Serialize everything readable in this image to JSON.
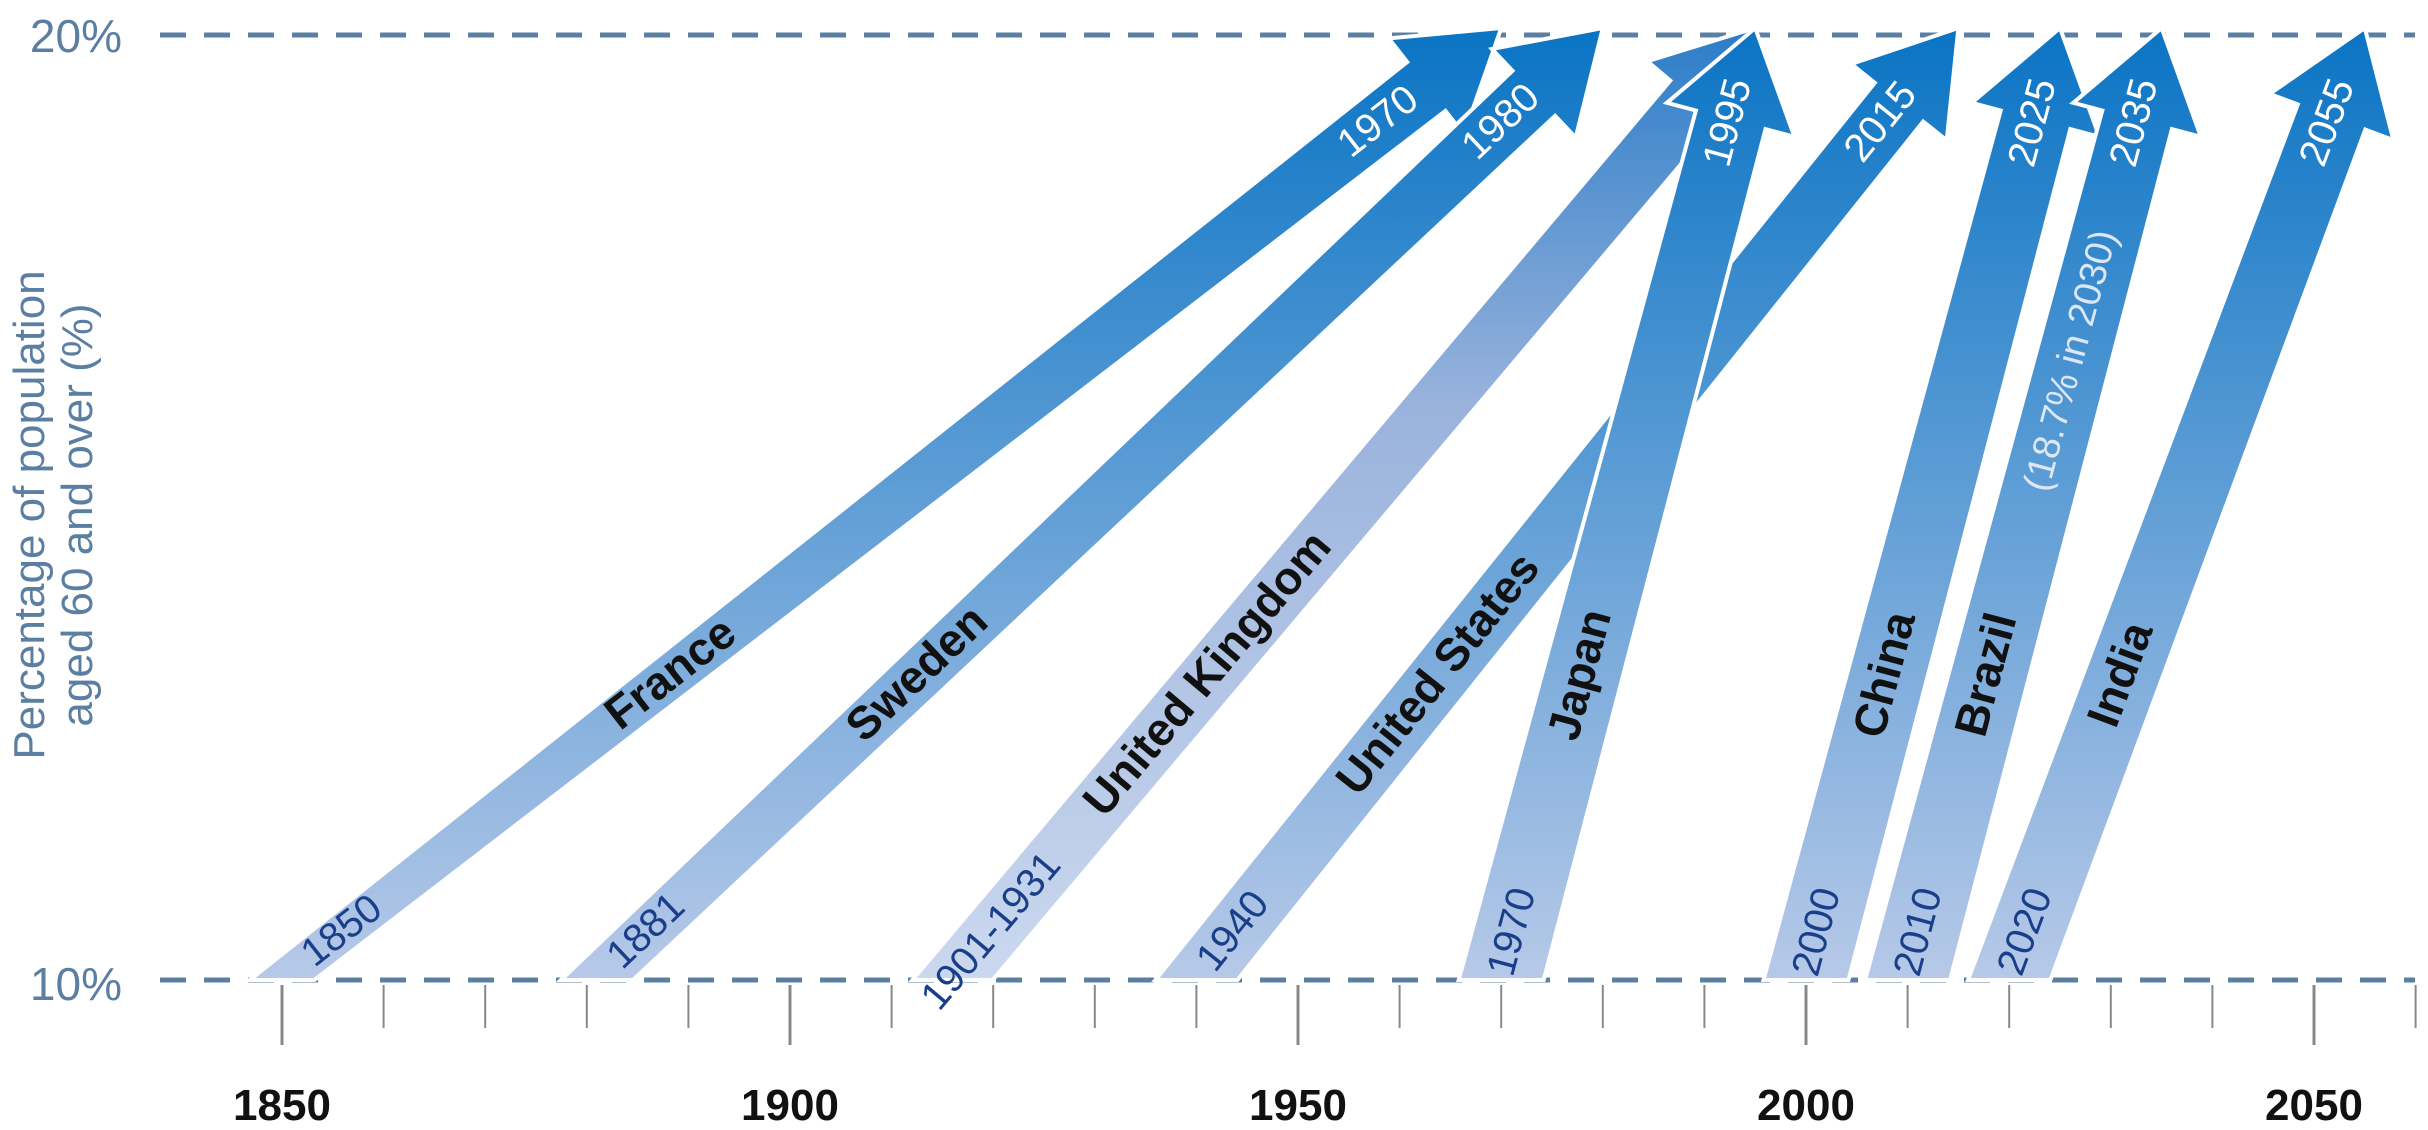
{
  "chart_data": {
    "type": "arrow-timeline",
    "ylabel_line1": "Percentage of population",
    "ylabel_line2": "aged 60 and over (%)",
    "y_ticks": [
      "10%",
      "20%"
    ],
    "ylim": [
      10,
      20
    ],
    "xlim": [
      1840,
      2060
    ],
    "x_ticks": [
      1850,
      1900,
      1950,
      2000,
      2050
    ],
    "x_tick_labels": [
      "1850",
      "1900",
      "1950",
      "2000",
      "2050"
    ],
    "grid": "dashed lines at 10% and 20%",
    "series": [
      {
        "name": "France",
        "start": 1850,
        "end": 1970,
        "start_label": "1850",
        "end_label": "1970"
      },
      {
        "name": "Sweden",
        "start": 1881,
        "end": 1980,
        "start_label": "1881",
        "end_label": "1980"
      },
      {
        "name": "United Kingdom",
        "start": 1916,
        "end": 1995,
        "start_label": "1901-1931",
        "end_label": ""
      },
      {
        "name": "United States",
        "start": 1940,
        "end": 2015,
        "start_label": "1940",
        "end_label": "2015"
      },
      {
        "name": "Japan",
        "start": 1970,
        "end": 1995,
        "start_label": "1970",
        "end_label": "1995"
      },
      {
        "name": "China",
        "start": 2000,
        "end": 2025,
        "start_label": "2000",
        "end_label": "2025"
      },
      {
        "name": "Brazil",
        "start": 2010,
        "end": 2035,
        "start_label": "2010",
        "end_label": "2035",
        "note": "(18.7% in 2030)"
      },
      {
        "name": "India",
        "start": 2020,
        "end": 2055,
        "start_label": "2020",
        "end_label": "2055"
      }
    ]
  }
}
